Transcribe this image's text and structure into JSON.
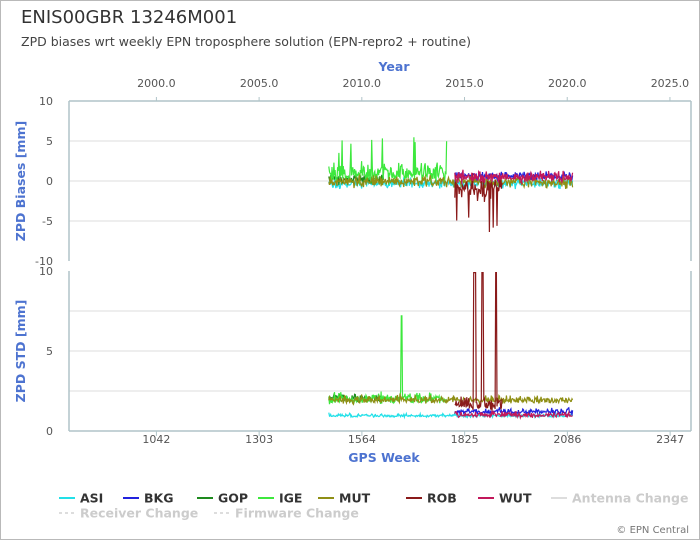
{
  "title": "ENIS00GBR 13246M001",
  "subtitle": "ZPD biases wrt weekly EPN troposphere solution (EPN-repro2 + routine)",
  "credit": "© EPN Central",
  "colors": {
    "axis": "#b0c4c8",
    "grid": "#dddddd",
    "axis_title": "#4d73d0",
    "tick": "#555555"
  },
  "chart_data": {
    "type": "line",
    "top_axis": {
      "title": "Year",
      "ticks": [
        "2000.0",
        "2005.0",
        "2010.0",
        "2015.0",
        "2020.0",
        "2025.0"
      ],
      "tick_values": [
        2000,
        2005,
        2010,
        2015,
        2020,
        2025
      ]
    },
    "bottom_axis": {
      "title": "GPS Week",
      "ticks": [
        "1042",
        "1303",
        "1564",
        "1825",
        "2086",
        "2347"
      ],
      "tick_values": [
        1042,
        1303,
        1564,
        1825,
        2086,
        2347
      ],
      "xlim": [
        820,
        2400
      ]
    },
    "panels": [
      {
        "ylabel": "ZPD Biases [mm]",
        "ylim": [
          -10,
          10
        ],
        "ticks": [
          "10",
          "5",
          "0",
          "-5",
          "-10"
        ],
        "tick_values": [
          10,
          5,
          0,
          -5,
          -10
        ],
        "gridlines": [
          5,
          0,
          -5
        ]
      },
      {
        "ylabel": "ZPD STD [mm]",
        "ylim": [
          0,
          10
        ],
        "ticks": [
          "10",
          "5",
          "0"
        ],
        "tick_values": [
          10,
          5,
          0
        ],
        "gridlines": [
          7.5,
          5,
          2.5
        ]
      }
    ],
    "series": [
      {
        "name": "ASI",
        "color": "#22e0e8",
        "x_range": [
          1480,
          2100
        ],
        "bias_mean": -0.3,
        "bias_spread": 0.9,
        "std_mean": 0.9,
        "std_spread": 0.25,
        "style": "solid"
      },
      {
        "name": "BKG",
        "color": "#2222dd",
        "x_range": [
          1800,
          2100
        ],
        "bias_mean": 0.6,
        "bias_spread": 0.7,
        "std_mean": 1.1,
        "std_spread": 0.45,
        "style": "solid"
      },
      {
        "name": "GOP",
        "color": "#1e8a1e",
        "x_range": [
          1480,
          1620
        ],
        "bias_mean": 0.2,
        "bias_spread": 0.8,
        "std_mean": 1.9,
        "std_spread": 0.6,
        "style": "solid"
      },
      {
        "name": "IGE",
        "color": "#3de83d",
        "x_range": [
          1480,
          1780
        ],
        "bias_mean": 1.0,
        "bias_spread": 1.8,
        "std_mean": 1.8,
        "std_spread": 0.8,
        "style": "solid"
      },
      {
        "name": "MUT",
        "color": "#8f8f15",
        "x_range": [
          1480,
          2100
        ],
        "bias_mean": -0.1,
        "bias_spread": 1.0,
        "std_mean": 1.8,
        "std_spread": 0.55,
        "style": "solid"
      },
      {
        "name": "ROB",
        "color": "#8a1a1a",
        "x_range": [
          1800,
          1920
        ],
        "bias_mean": -1.0,
        "bias_spread": 2.4,
        "std_mean": 1.4,
        "std_spread": 1.0,
        "style": "solid"
      },
      {
        "name": "WUT",
        "color": "#c2185b",
        "x_range": [
          1800,
          2100
        ],
        "bias_mean": 0.5,
        "bias_spread": 1.1,
        "std_mean": 0.9,
        "std_spread": 0.45,
        "style": "solid"
      }
    ],
    "change_events": [
      {
        "name": "Antenna Change",
        "color": "#dddddd",
        "style": "solid"
      },
      {
        "name": "Receiver Change",
        "color": "#dddddd",
        "style": "dashed"
      },
      {
        "name": "Firmware Change",
        "color": "#dddddd",
        "style": "dashed"
      }
    ],
    "grid": true,
    "legend_position": "bottom"
  }
}
